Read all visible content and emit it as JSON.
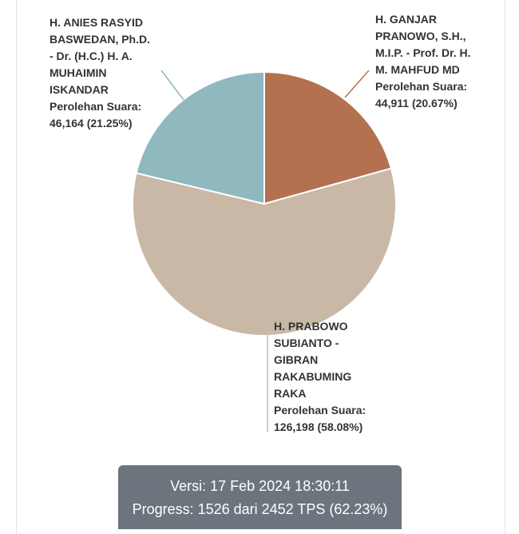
{
  "chart_data": {
    "type": "pie",
    "categories": [
      "H. GANJAR PRANOWO, S.H., M.I.P. - Prof. Dr. H. M. MAHFUD MD",
      "H. PRABOWO SUBIANTO - GIBRAN RAKABUMING RAKA",
      "H. ANIES RASYID BASWEDAN, Ph.D. - Dr. (H.C.) H. A. MUHAIMIN ISKANDAR"
    ],
    "values": [
      44911,
      126198,
      46164
    ],
    "value_labels": [
      "44,911 (20.67%)",
      "126,198 (58.08%)",
      "46,164 (21.25%)"
    ],
    "value_label_prefix": "Perolehan Suara:",
    "colors": [
      "#b37150",
      "#c9b8a6",
      "#8fb8bf"
    ]
  },
  "footer": {
    "version": "Versi: 17 Feb 2024 18:30:11",
    "progress": "Progress: 1526 dari 2452 TPS (62.23%)"
  }
}
